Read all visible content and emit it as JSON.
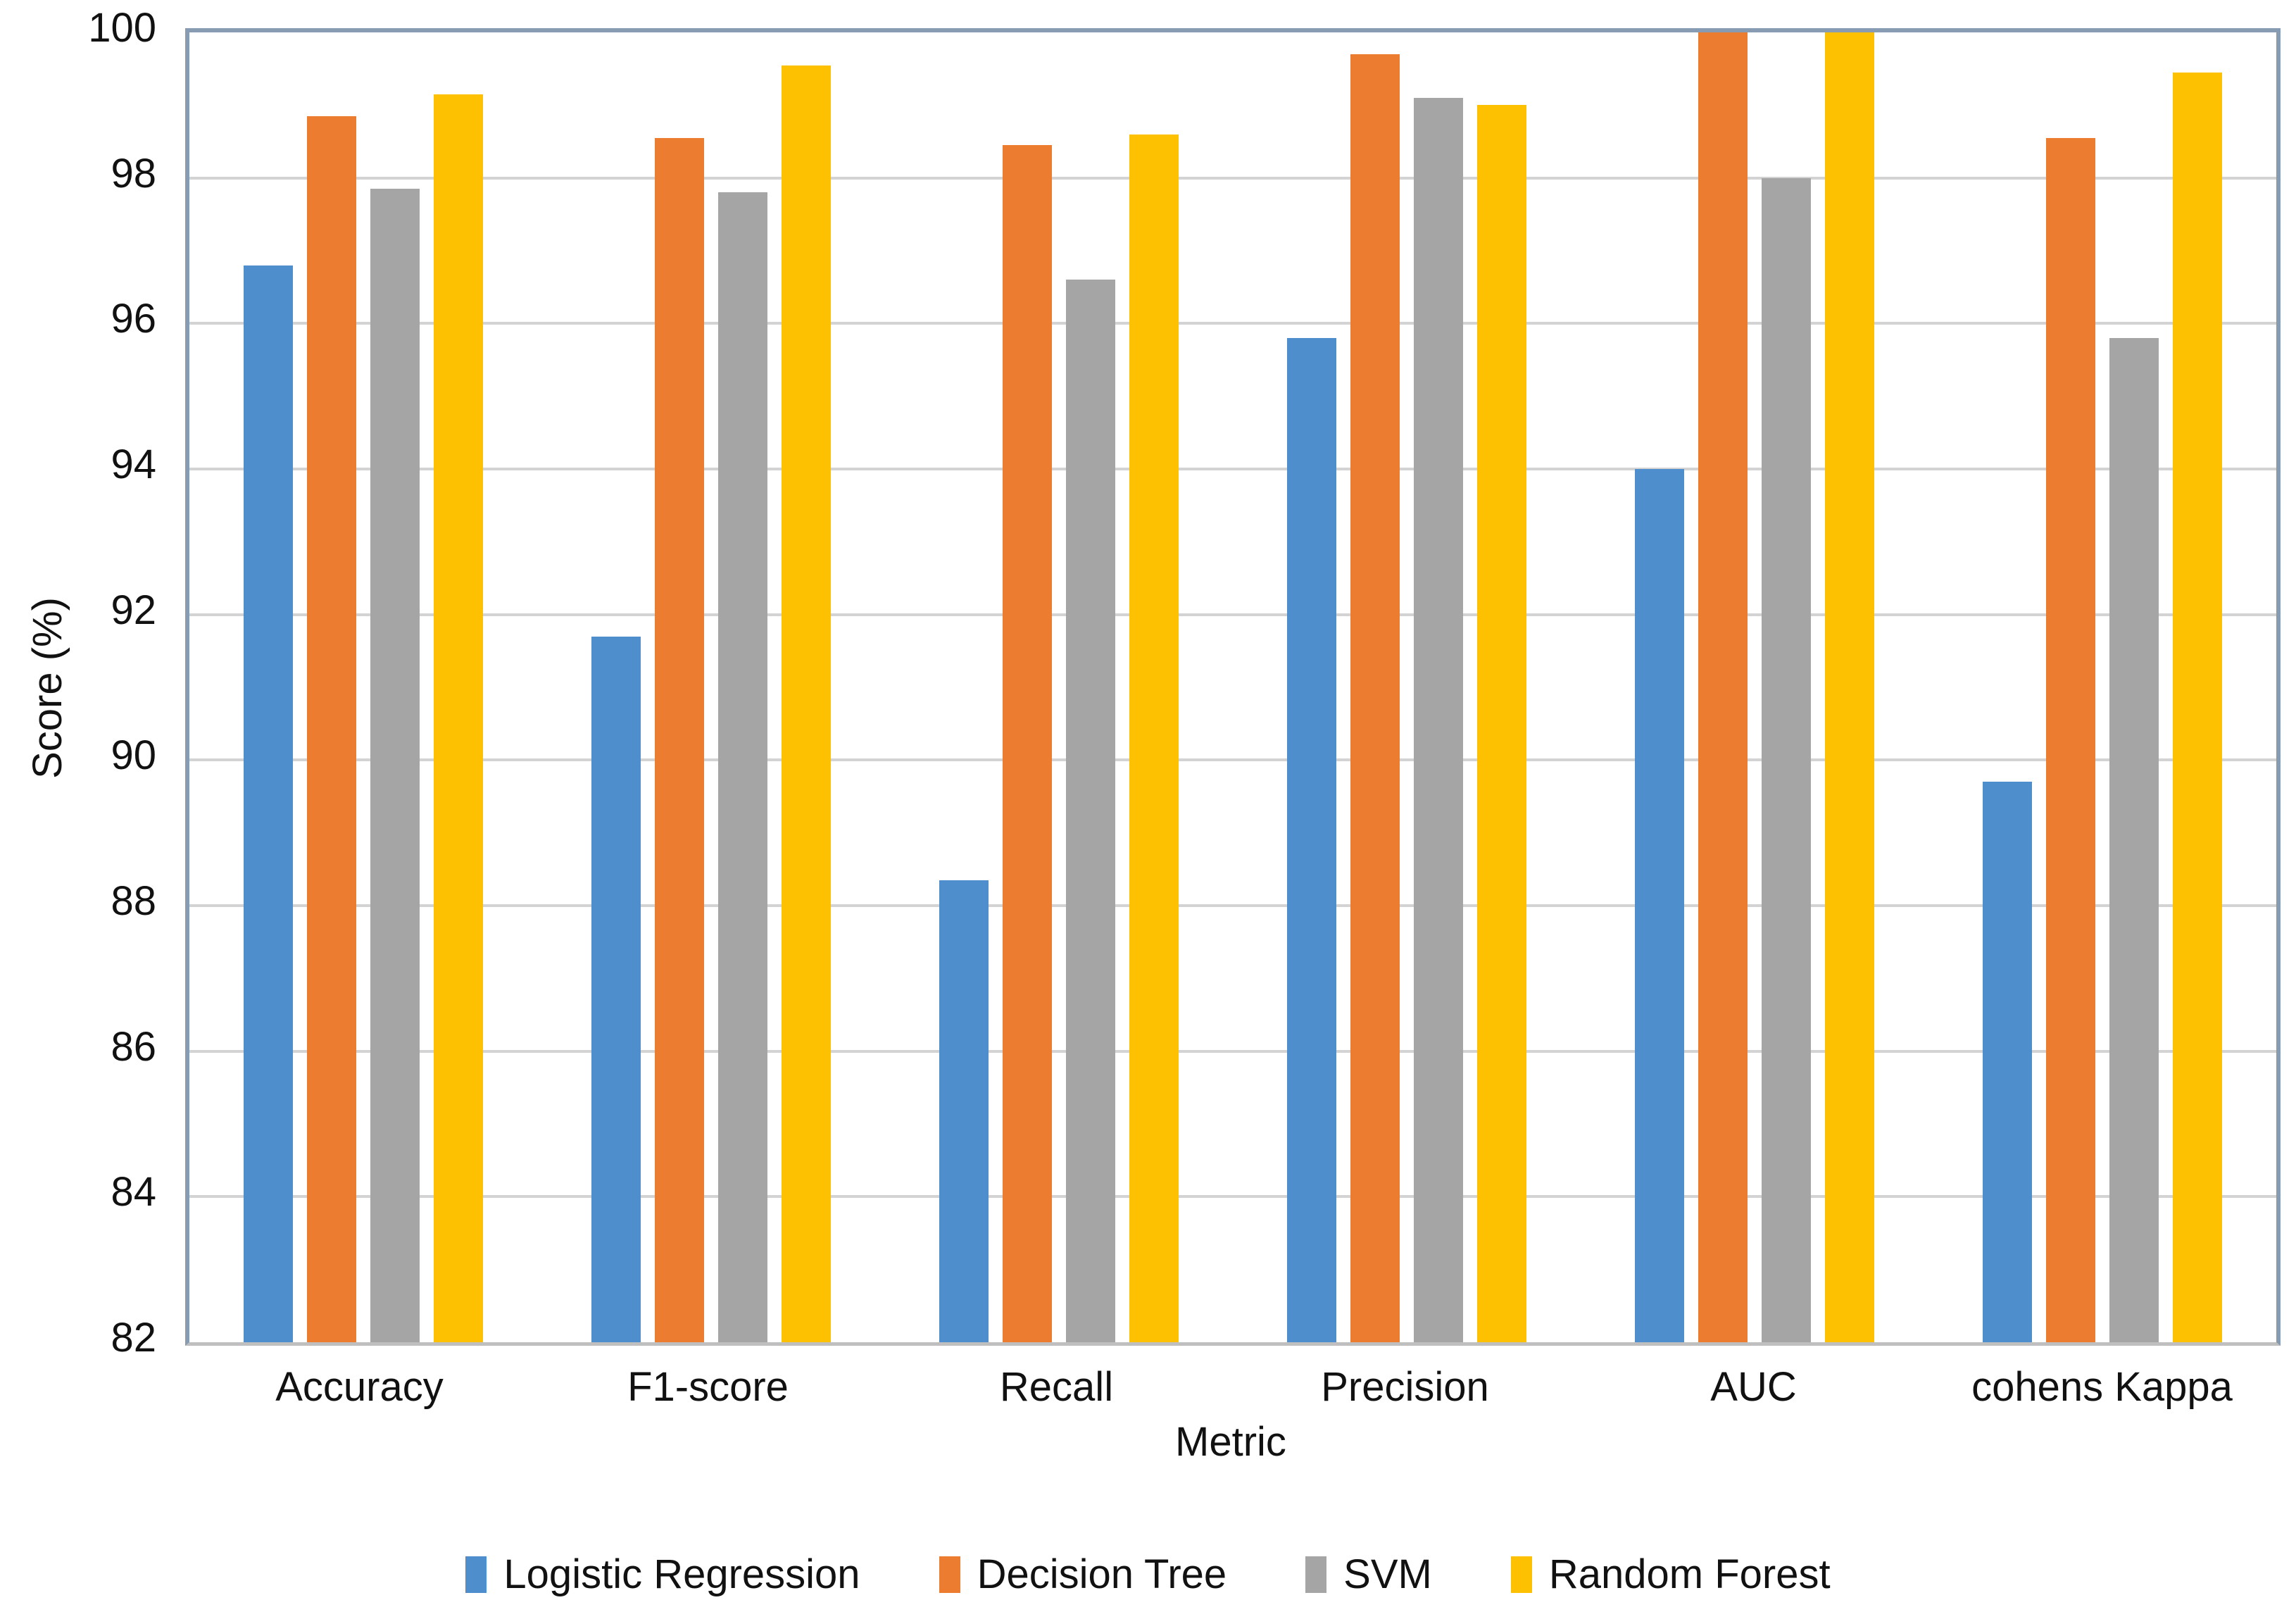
{
  "chart_data": {
    "type": "bar",
    "title": "",
    "xlabel": "Metric",
    "ylabel": "Score (%)",
    "ylim": [
      82,
      100
    ],
    "ytick_step": 2,
    "yticks": [
      100,
      98,
      96,
      94,
      92,
      90,
      88,
      86,
      84,
      82
    ],
    "grid": true,
    "legend_position": "bottom",
    "categories": [
      "Accuracy",
      "F1-score",
      "Recall",
      "Precision",
      "AUC",
      "cohens Kappa"
    ],
    "series": [
      {
        "name": "Logistic Regression",
        "color": "#4E8ECD",
        "values": [
          96.8,
          91.7,
          88.35,
          95.8,
          94.0,
          89.7
        ]
      },
      {
        "name": "Decision Tree",
        "color": "#EC7C30",
        "values": [
          98.85,
          98.55,
          98.45,
          99.7,
          100.0,
          98.55
        ]
      },
      {
        "name": "SVM",
        "color": "#A5A5A5",
        "values": [
          97.85,
          97.8,
          96.6,
          99.1,
          98.0,
          95.8
        ]
      },
      {
        "name": "Random Forest",
        "color": "#FDC101",
        "values": [
          99.15,
          99.55,
          98.6,
          99.0,
          100.0,
          99.45
        ]
      }
    ],
    "colors": {
      "plot_border": "#879CB3",
      "gridline": "#D3D3D3",
      "axis_bottom": "#BFBFBF",
      "text": "#111111",
      "background": "#FFFFFF"
    }
  }
}
